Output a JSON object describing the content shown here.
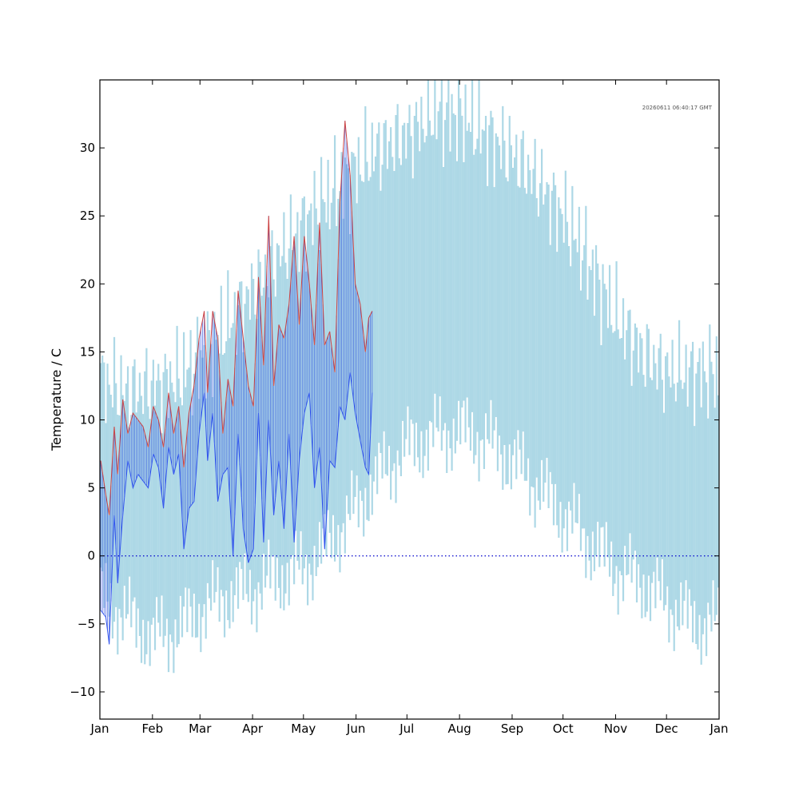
{
  "chart_data": {
    "type": "bar",
    "title": "",
    "xlabel": "",
    "ylabel": "Temperature / C",
    "timestamp": "20260611 06:40:17 GMT",
    "xlim_days": [
      0,
      365
    ],
    "ylim": [
      -12,
      35
    ],
    "yticks": [
      -10,
      -5,
      0,
      5,
      10,
      15,
      20,
      25,
      30
    ],
    "xticks": [
      {
        "label": "Jan",
        "day": 0
      },
      {
        "label": "Feb",
        "day": 31
      },
      {
        "label": "Mar",
        "day": 59
      },
      {
        "label": "Apr",
        "day": 90
      },
      {
        "label": "May",
        "day": 120
      },
      {
        "label": "Jun",
        "day": 151
      },
      {
        "label": "Jul",
        "day": 181
      },
      {
        "label": "Aug",
        "day": 212
      },
      {
        "label": "Sep",
        "day": 243
      },
      {
        "label": "Oct",
        "day": 273
      },
      {
        "label": "Nov",
        "day": 304
      },
      {
        "label": "Dec",
        "day": 334
      },
      {
        "label": "Jan",
        "day": 365
      }
    ],
    "reference_line": {
      "y": 0,
      "style": "dotted",
      "color": "#0000cc"
    },
    "colors": {
      "historical_range": "#add8e6",
      "current_max": "#cc4444",
      "current_min": "#3355ee",
      "current_range": "#2244dd"
    },
    "series": [
      {
        "role": "historical-range",
        "envelope_days": [
          0,
          15,
          31,
          45,
          59,
          75,
          90,
          105,
          120,
          135,
          151,
          165,
          181,
          196,
          212,
          227,
          243,
          258,
          273,
          288,
          304,
          319,
          334,
          350,
          365
        ],
        "max": [
          13,
          12,
          12.5,
          13,
          14.5,
          17,
          19.5,
          22,
          24.5,
          26.5,
          28.5,
          30,
          31,
          32.5,
          32.5,
          31,
          29.5,
          27.5,
          25,
          21.5,
          17.5,
          15,
          13.5,
          13.5,
          13.5
        ],
        "min": [
          -3,
          -4.5,
          -6,
          -5.5,
          -4,
          -3,
          -2.5,
          -1.5,
          -1,
          1,
          3.5,
          6,
          8,
          8.8,
          9.2,
          8.5,
          7,
          5,
          3,
          1,
          -1,
          -2,
          -3.5,
          -5,
          -5
        ]
      },
      {
        "role": "current-year",
        "days": [
          0,
          3,
          5,
          8,
          10,
          13,
          16,
          19,
          22,
          25,
          28,
          31,
          34,
          37,
          40,
          43,
          46,
          49,
          52,
          55,
          58,
          61,
          63,
          66,
          69,
          72,
          75,
          78,
          81,
          84,
          87,
          90,
          93,
          96,
          99,
          102,
          105,
          108,
          111,
          114,
          117,
          120,
          123,
          126,
          129,
          132,
          135,
          138,
          141,
          144,
          147,
          150,
          153,
          156,
          158,
          160
        ],
        "max": [
          7,
          4.5,
          3,
          9.5,
          6,
          11.5,
          9,
          10.5,
          10,
          9.5,
          8,
          11,
          10,
          8,
          12,
          9,
          11,
          6.5,
          10.5,
          12.5,
          16,
          18,
          12,
          18,
          16,
          9,
          13,
          11,
          19.5,
          16,
          12.5,
          11,
          20.5,
          14,
          25,
          12.5,
          17,
          16,
          18.5,
          23.5,
          17,
          23.5,
          20,
          15.5,
          24.5,
          15.5,
          16.5,
          13.5,
          26,
          32,
          28,
          20,
          18.5,
          15,
          17.5,
          18
        ],
        "min": [
          -4,
          -4.5,
          -6.5,
          3,
          -2,
          3,
          7,
          5,
          6,
          5.5,
          5,
          7.5,
          6.5,
          3.5,
          8,
          6,
          7.5,
          0.5,
          3.5,
          4,
          9,
          12,
          7,
          10.5,
          4,
          6,
          6.5,
          0,
          9,
          2,
          -0.5,
          0.5,
          10.5,
          1,
          10,
          3,
          7,
          2,
          9,
          1,
          7,
          10.5,
          12,
          5,
          8,
          0.5,
          7,
          6.5,
          11,
          10,
          13.5,
          10.5,
          8.5,
          6.5,
          6,
          12
        ]
      }
    ]
  }
}
